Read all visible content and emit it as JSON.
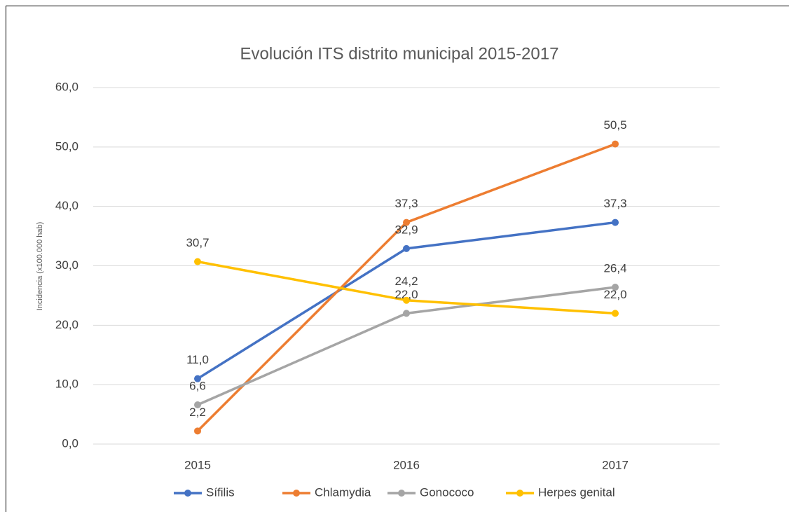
{
  "chart_data": {
    "type": "line",
    "title": "Evolución ITS distrito municipal 2015-2017",
    "y_label": "Incidencia (x100.000 hab)",
    "categories": [
      "2015",
      "2016",
      "2017"
    ],
    "series": [
      {
        "name": "Sífilis",
        "color": "#4472c4",
        "values": [
          11.0,
          32.9,
          37.3
        ],
        "value_labels": [
          "11,0",
          "32,9",
          "37,3"
        ]
      },
      {
        "name": "Chlamydia",
        "color": "#ed7d31",
        "values": [
          2.2,
          37.3,
          50.5
        ],
        "value_labels": [
          "2,2",
          "37,3",
          "50,5"
        ]
      },
      {
        "name": "Gonococo",
        "color": "#a5a5a5",
        "values": [
          6.6,
          22.0,
          26.4
        ],
        "value_labels": [
          "6,6",
          "22,0",
          "26,4"
        ]
      },
      {
        "name": "Herpes genital",
        "color": "#ffc000",
        "values": [
          30.7,
          24.2,
          22.0
        ],
        "value_labels": [
          "30,7",
          "24,2",
          "22,0"
        ]
      }
    ],
    "ylim": [
      0,
      60
    ],
    "yticks": [
      {
        "value": 0,
        "label": "0,0"
      },
      {
        "value": 10,
        "label": "10,0"
      },
      {
        "value": 20,
        "label": "20,0"
      },
      {
        "value": 30,
        "label": "30,0"
      },
      {
        "value": 40,
        "label": "40,0"
      },
      {
        "value": 50,
        "label": "50,0"
      },
      {
        "value": 60,
        "label": "60,0"
      }
    ],
    "grid": true,
    "legend": "bottom"
  }
}
